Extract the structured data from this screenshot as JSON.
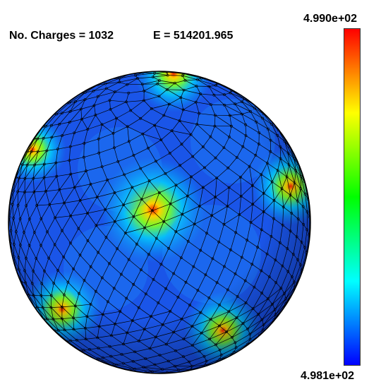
{
  "header": {
    "charges_text": "No. Charges = 1032",
    "energy_text": "E = 514201.965"
  },
  "colorbar": {
    "max_label": "4.990e+02",
    "min_label": "4.981e+02",
    "colormap": [
      "#0000ff",
      "#0080ff",
      "#00ffff",
      "#00ff80",
      "#00ff00",
      "#80ff00",
      "#ffff00",
      "#ff8000",
      "#ff0000"
    ]
  },
  "sphere": {
    "base_color": "#1a55e8",
    "mesh_color": "#000000",
    "hotspots": [
      {
        "name": "hotspot-top",
        "level": 0.95
      },
      {
        "name": "hotspot-left",
        "level": 0.85
      },
      {
        "name": "hotspot-right",
        "level": 0.9
      },
      {
        "name": "hotspot-center",
        "level": 1.0
      },
      {
        "name": "hotspot-lower-left",
        "level": 0.88
      },
      {
        "name": "hotspot-bottom",
        "level": 0.88
      }
    ]
  }
}
